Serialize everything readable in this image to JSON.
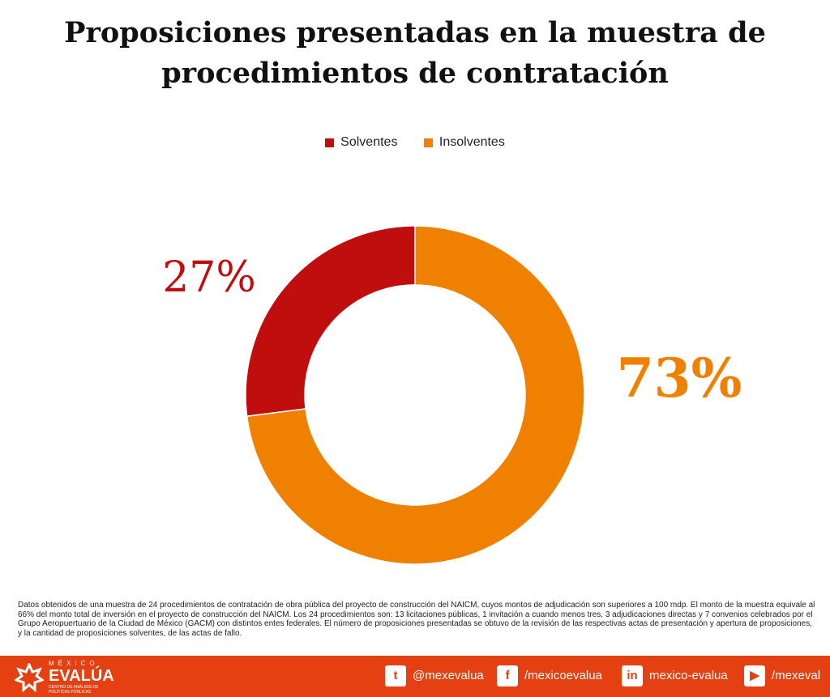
{
  "chart_data": {
    "type": "pie",
    "variant": "donut",
    "title": "Proposiciones presentadas en la muestra de procedimientos de contratación",
    "legend_position": "top",
    "categories": [
      "Solventes",
      "Insolventes"
    ],
    "values": [
      27,
      73
    ],
    "labels": [
      "27%",
      "73%"
    ],
    "colors": [
      "#c00d0d",
      "#f08000"
    ]
  },
  "note": "Datos obtenidos de una muestra de 24 procedimientos de contratación de obra pública del proyecto de construcción del NAICM, cuyos montos de adjudicación son superiores a 100 mdp. El monto de la muestra equivale al 66% del monto total de inversión en el proyecto de construcción del NAICM. Los 24 procedimientos son: 13 licitaciones públicas, 1 invitación a cuando menos tres, 3 adjudicaciones directas y 7 convenios celebrados por el Grupo Aeropuertuario de la Ciudad de México (GACM) con distintos entes federales. El número de proposiciones presentadas se obtuvo de la revisión de las respectivas actas de presentación y apertura de proposiciones, y la cantidad de proposiciones solventes, de las actas de fallo.",
  "footer": {
    "color": "#e44012",
    "logo": {
      "line1": "MÉXICO",
      "line2": "EVALÚA",
      "line3": "CENTRO DE ANÁLISIS DE POLÍTICAS PÚBLICAS"
    },
    "social": [
      {
        "icon": "twitter-icon",
        "glyph": "t",
        "handle": "@mexevalua"
      },
      {
        "icon": "facebook-icon",
        "glyph": "f",
        "handle": "/mexicoevalua"
      },
      {
        "icon": "linkedin-icon",
        "glyph": "in",
        "handle": "mexico-evalua"
      },
      {
        "icon": "youtube-icon",
        "glyph": "▶",
        "handle": "/mexeval"
      }
    ]
  }
}
